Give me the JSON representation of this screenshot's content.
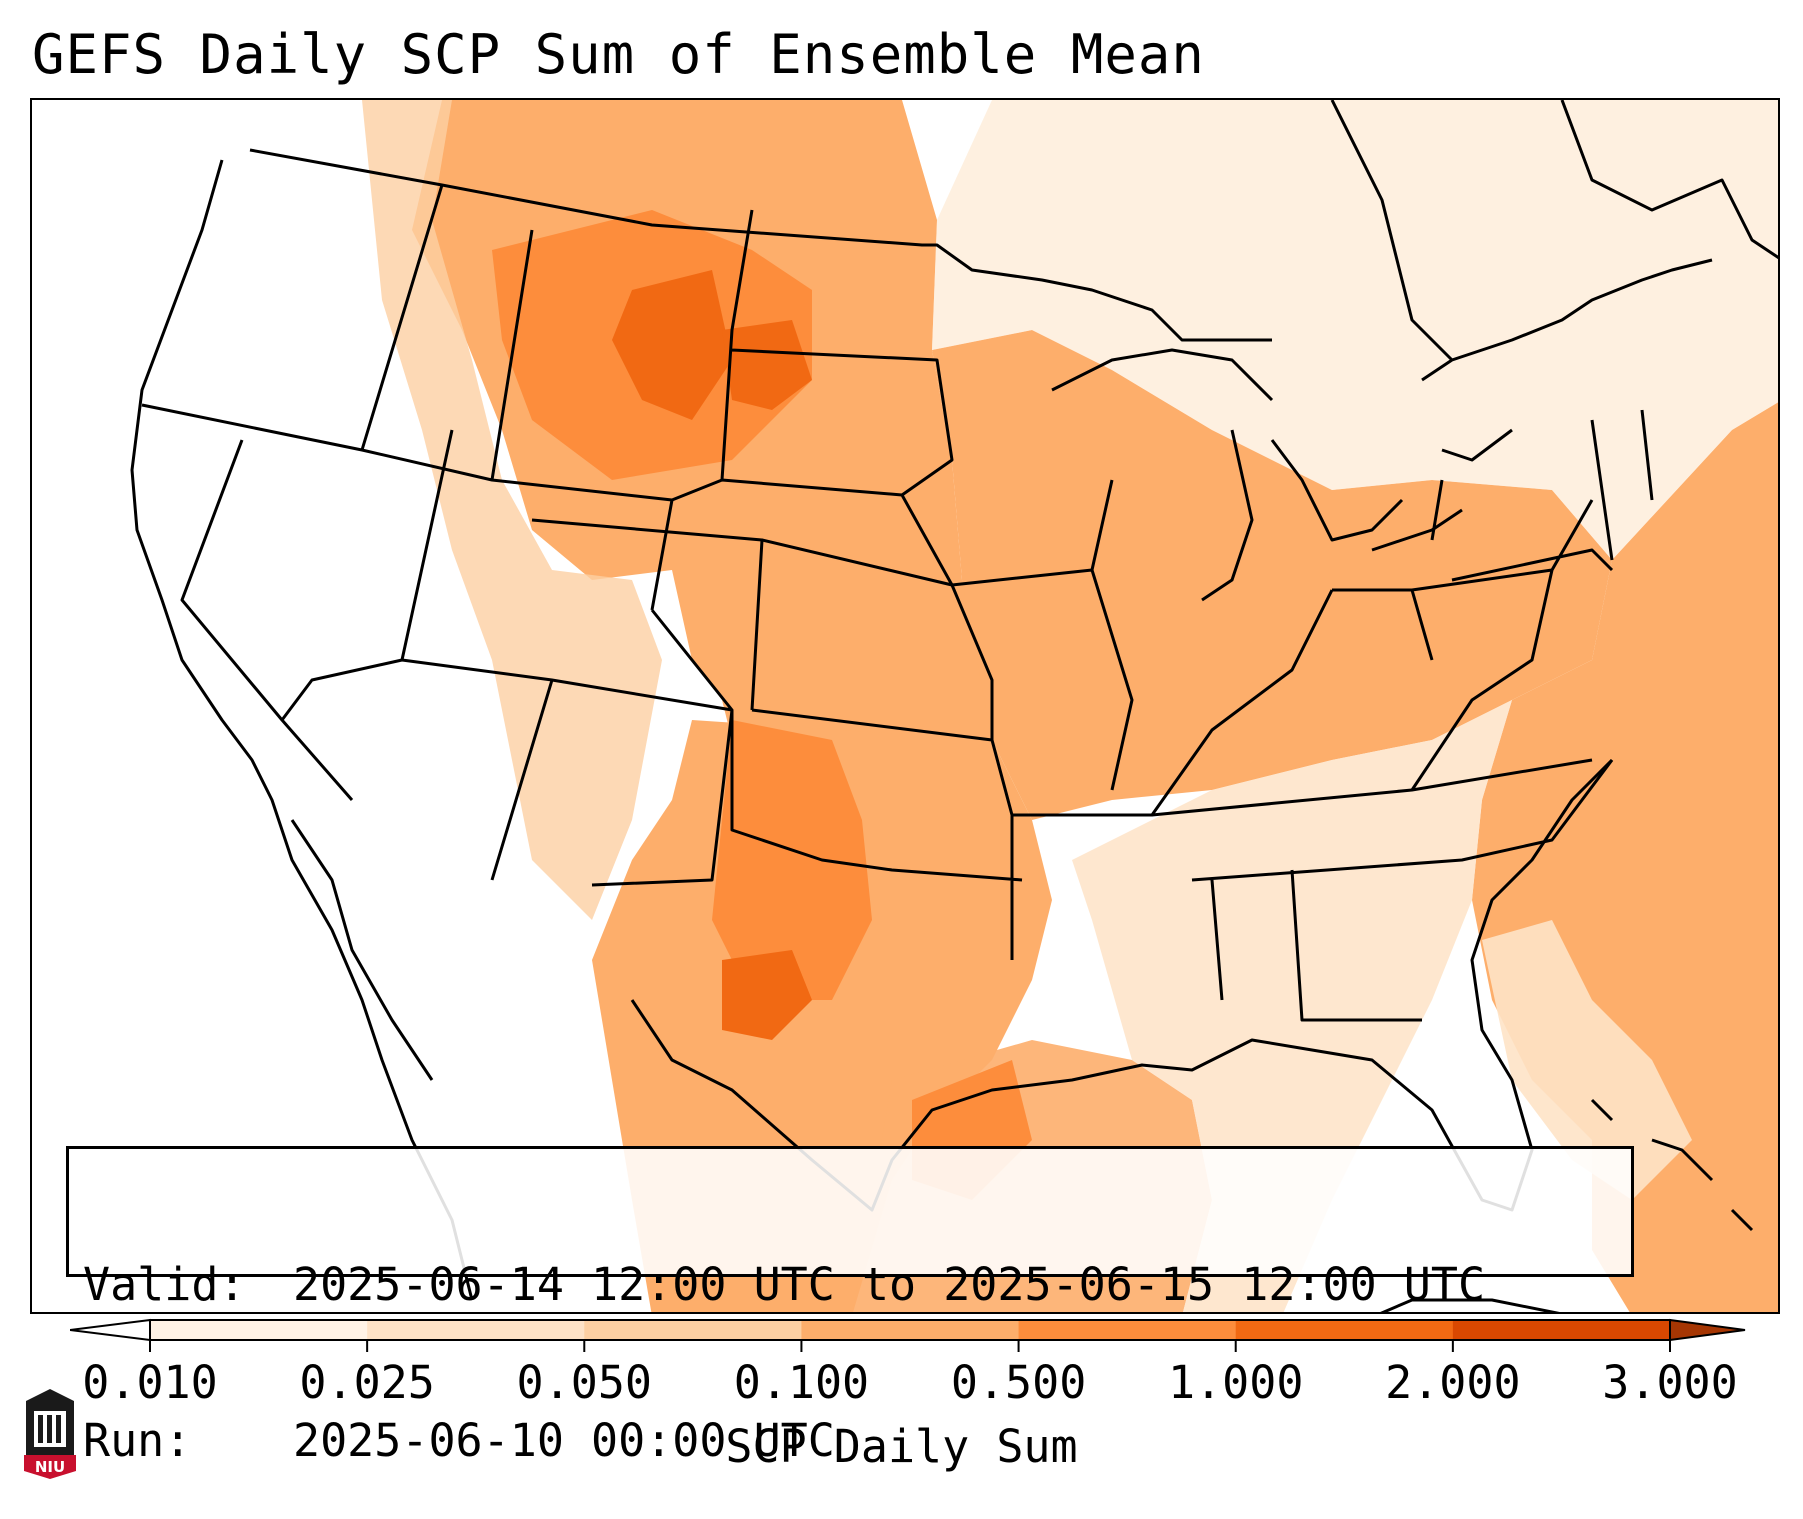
{
  "title": "GEFS Daily SCP Sum of Ensemble Mean",
  "info": {
    "valid_label": "Valid:",
    "valid_value": "2025-06-14 12:00 UTC to 2025-06-15 12:00 UTC",
    "run_label": "Run:",
    "run_value": "2025-06-10 00:00 UTC"
  },
  "colorbar": {
    "label": "SCP Daily Sum",
    "ticks": [
      "0.010",
      "0.025",
      "0.050",
      "0.100",
      "0.500",
      "1.000",
      "2.000",
      "3.000"
    ],
    "colors": [
      "#fff3e6",
      "#fee3c7",
      "#fdd0a2",
      "#fdae6b",
      "#fd8d3c",
      "#f16913",
      "#d94801"
    ],
    "extend": "both"
  },
  "logo": {
    "text": "NIU",
    "color": "#c8102e",
    "icon": "university-seal-icon"
  }
}
